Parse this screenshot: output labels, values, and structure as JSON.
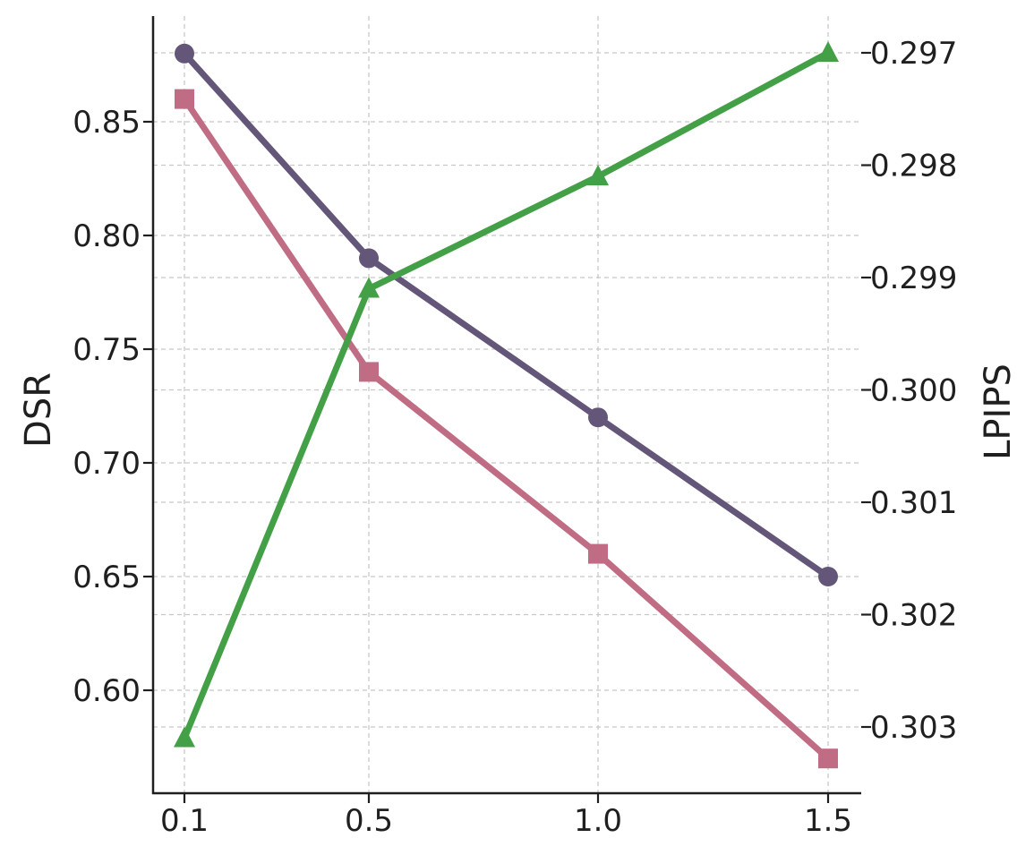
{
  "chart_data": {
    "type": "line",
    "x": [
      0.1,
      0.5,
      1.0,
      1.5
    ],
    "x_tick_labels": [
      "0.1",
      "0.5",
      "1.0",
      "1.5"
    ],
    "xlabel": "",
    "ylabel_left": "DSR",
    "ylabel_right": "LPIPS",
    "ylim_left": [
      0.555,
      0.895
    ],
    "ylim_right": [
      0.3035,
      0.2965
    ],
    "right_axis_inverted": true,
    "y_ticks_left": [
      0.6,
      0.65,
      0.7,
      0.75,
      0.8,
      0.85
    ],
    "y_tick_labels_left": [
      "0.60",
      "0.65",
      "0.70",
      "0.75",
      "0.80",
      "0.85"
    ],
    "y_ticks_right": [
      0.303,
      0.302,
      0.301,
      0.3,
      0.299,
      0.298,
      0.297
    ],
    "y_tick_labels_right": [
      "0.303",
      "0.302",
      "0.301",
      "0.300",
      "0.299",
      "0.298",
      "0.297"
    ],
    "grid": true,
    "legend": "none",
    "series": [
      {
        "axis": "left",
        "marker": "circle",
        "color": "#645679",
        "values": [
          0.88,
          0.79,
          0.72,
          0.65
        ]
      },
      {
        "axis": "left",
        "marker": "square",
        "color": "#c06c84",
        "values": [
          0.86,
          0.74,
          0.66,
          0.57
        ]
      },
      {
        "axis": "right",
        "marker": "triangle",
        "color": "#43a047",
        "values": [
          0.3031,
          0.2991,
          0.2981,
          0.297
        ]
      }
    ]
  }
}
